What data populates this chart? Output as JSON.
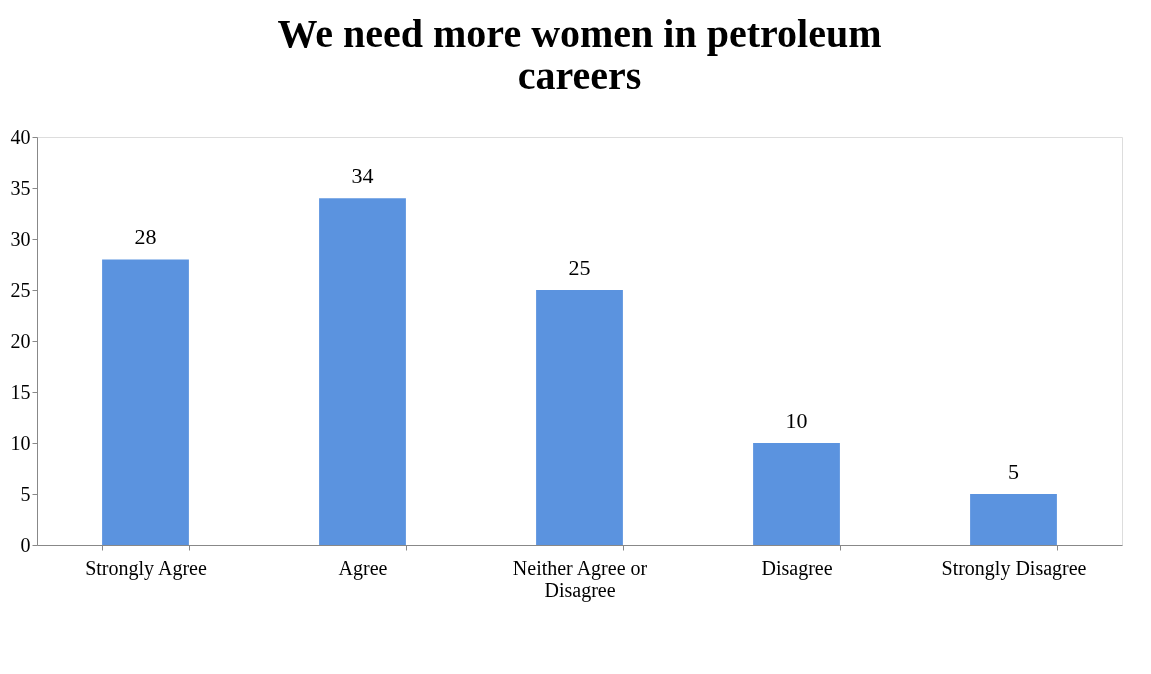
{
  "chart_data": {
    "type": "bar",
    "title": "We need more women in petroleum careers",
    "categories": [
      "Strongly Agree",
      "Agree",
      "Neither Agree or Disagree",
      "Disagree",
      "Strongly Disagree"
    ],
    "values": [
      28,
      34,
      25,
      10,
      5
    ],
    "color": "#5b93df",
    "ylim": [
      0,
      40
    ],
    "yticks": [
      0,
      5,
      10,
      15,
      20,
      25,
      30,
      35,
      40
    ],
    "grid": false,
    "data_labels": true
  }
}
